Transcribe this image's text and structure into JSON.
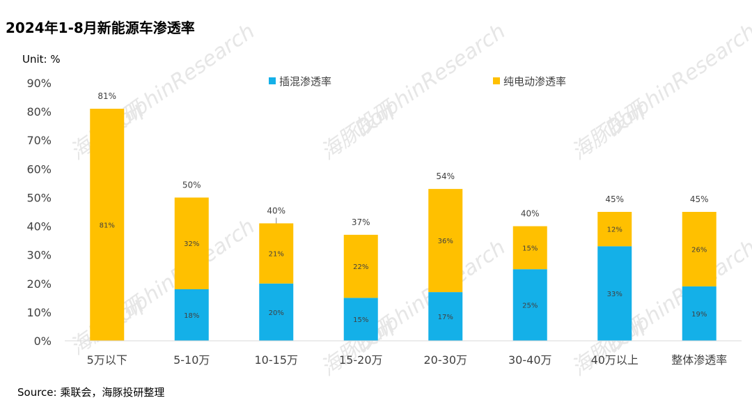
{
  "title": "2024年1-8月新能源车渗透率",
  "unit_label": "Unit: %",
  "source": "Source: 乘联会，海豚投研整理",
  "watermark": [
    "海豚投研",
    "DolphinResearch"
  ],
  "colors": {
    "phev": "#14b0e8",
    "bev": "#ffc000",
    "text": "#404040"
  },
  "chart_data": {
    "type": "bar",
    "stacked": true,
    "title": "2024年1-8月新能源车渗透率",
    "ylabel": "Unit: %",
    "ylim": [
      0,
      90
    ],
    "yticks": [
      "0%",
      "10%",
      "20%",
      "30%",
      "40%",
      "50%",
      "60%",
      "70%",
      "80%",
      "90%"
    ],
    "categories": [
      "5万以下",
      "5-10万",
      "10-15万",
      "15-20万",
      "20-30万",
      "30-40万",
      "40万以上",
      "整体渗透率"
    ],
    "series": [
      {
        "name": "插混渗透率",
        "color": "#14b0e8",
        "values": [
          0,
          18,
          20,
          15,
          17,
          25,
          33,
          19
        ],
        "labels": [
          "",
          "18%",
          "20%",
          "15%",
          "17%",
          "25%",
          "33%",
          "19%"
        ]
      },
      {
        "name": "纯电动渗透率",
        "color": "#ffc000",
        "values": [
          81,
          32,
          21,
          22,
          36,
          15,
          12,
          26
        ],
        "labels": [
          "81%",
          "32%",
          "21%",
          "22%",
          "36%",
          "15%",
          "12%",
          "26%"
        ]
      }
    ],
    "totals": [
      "81%",
      "50%",
      "40%",
      "37%",
      "54%",
      "40%",
      "45%",
      "45%"
    ],
    "legend_position": "top"
  }
}
